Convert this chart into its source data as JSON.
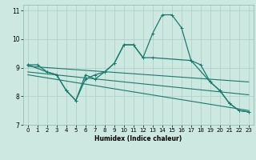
{
  "xlabel": "Humidex (Indice chaleur)",
  "bg_color": "#cce8e0",
  "grid_color": "#aaccc4",
  "line_color": "#1a7a6e",
  "xlim": [
    -0.5,
    23.5
  ],
  "ylim": [
    7,
    11.2
  ],
  "yticks": [
    7,
    8,
    9,
    10,
    11
  ],
  "xticks": [
    0,
    1,
    2,
    3,
    4,
    5,
    6,
    7,
    8,
    9,
    10,
    11,
    12,
    13,
    14,
    15,
    16,
    17,
    18,
    19,
    20,
    21,
    22,
    23
  ],
  "line1_x": [
    0,
    1,
    2,
    3,
    4,
    5,
    6,
    7,
    8,
    9,
    10,
    11,
    12,
    13,
    14,
    15,
    16,
    17,
    18,
    19,
    20,
    21,
    22,
    23
  ],
  "line1_y": [
    9.1,
    9.1,
    8.85,
    8.75,
    8.2,
    7.85,
    8.6,
    8.75,
    8.85,
    9.15,
    9.8,
    9.8,
    9.35,
    10.2,
    10.85,
    10.85,
    10.4,
    9.25,
    9.1,
    8.5,
    8.2,
    7.75,
    7.5,
    7.45
  ],
  "line2_x": [
    0,
    2,
    3,
    4,
    5,
    6,
    7,
    8,
    9,
    10,
    11,
    12,
    13,
    17,
    19,
    20,
    21,
    22,
    23
  ],
  "line2_y": [
    9.1,
    8.85,
    8.75,
    8.2,
    7.85,
    8.75,
    8.6,
    8.85,
    9.15,
    9.8,
    9.8,
    9.35,
    9.35,
    9.25,
    8.5,
    8.2,
    7.75,
    7.5,
    7.45
  ],
  "line3_x": [
    0,
    23
  ],
  "line3_y": [
    9.05,
    8.5
  ],
  "line4_x": [
    0,
    23
  ],
  "line4_y": [
    8.85,
    8.05
  ],
  "line5_x": [
    0,
    23
  ],
  "line5_y": [
    8.75,
    7.5
  ]
}
